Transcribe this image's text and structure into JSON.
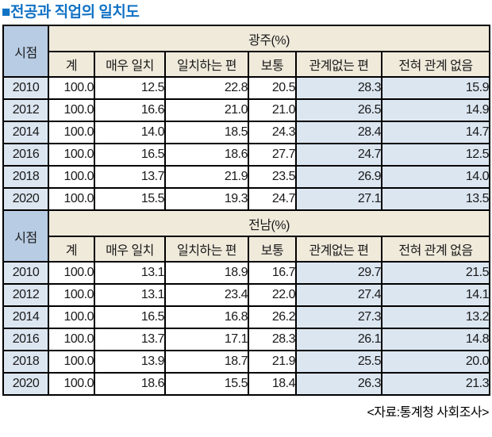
{
  "title": "■전공과 직업의 일치도",
  "source_note": "<자료:통계청 사회조사>",
  "colors": {
    "title_blue": "#1172c4",
    "header_cream": "#f0eadb",
    "corner_blue": "#b8cce4",
    "tint_blue": "#dce6f1",
    "border": "#000000",
    "background": "#ffffff"
  },
  "chart_data": {
    "type": "table",
    "title": "전공과 직업의 일치도",
    "row_header": "시점",
    "columns": [
      "계",
      "매우 일치",
      "일치하는 편",
      "보통",
      "관계없는 편",
      "전혀 관계 없음"
    ],
    "sections": [
      {
        "name": "광주(%)",
        "rows": [
          {
            "year": "2010",
            "values": [
              "100.0",
              "12.5",
              "22.8",
              "20.5",
              "28.3",
              "15.9"
            ]
          },
          {
            "year": "2012",
            "values": [
              "100.0",
              "16.6",
              "21.0",
              "21.0",
              "26.5",
              "14.9"
            ]
          },
          {
            "year": "2014",
            "values": [
              "100.0",
              "14.0",
              "18.5",
              "24.3",
              "28.4",
              "14.7"
            ]
          },
          {
            "year": "2016",
            "values": [
              "100.0",
              "16.5",
              "18.6",
              "27.7",
              "24.7",
              "12.5"
            ]
          },
          {
            "year": "2018",
            "values": [
              "100.0",
              "13.7",
              "21.9",
              "23.5",
              "26.9",
              "14.0"
            ]
          },
          {
            "year": "2020",
            "values": [
              "100.0",
              "15.5",
              "19.3",
              "24.7",
              "27.1",
              "13.5"
            ]
          }
        ]
      },
      {
        "name": "전남(%)",
        "rows": [
          {
            "year": "2010",
            "values": [
              "100.0",
              "13.1",
              "18.9",
              "16.7",
              "29.7",
              "21.5"
            ]
          },
          {
            "year": "2012",
            "values": [
              "100.0",
              "13.1",
              "23.4",
              "22.0",
              "27.4",
              "14.1"
            ]
          },
          {
            "year": "2014",
            "values": [
              "100.0",
              "16.5",
              "16.8",
              "26.2",
              "27.3",
              "13.2"
            ]
          },
          {
            "year": "2016",
            "values": [
              "100.0",
              "13.7",
              "17.1",
              "28.3",
              "26.1",
              "14.8"
            ]
          },
          {
            "year": "2018",
            "values": [
              "100.0",
              "13.9",
              "18.7",
              "21.9",
              "25.5",
              "20.0"
            ]
          },
          {
            "year": "2020",
            "values": [
              "100.0",
              "18.6",
              "15.5",
              "18.4",
              "26.3",
              "21.3"
            ]
          }
        ]
      }
    ]
  }
}
